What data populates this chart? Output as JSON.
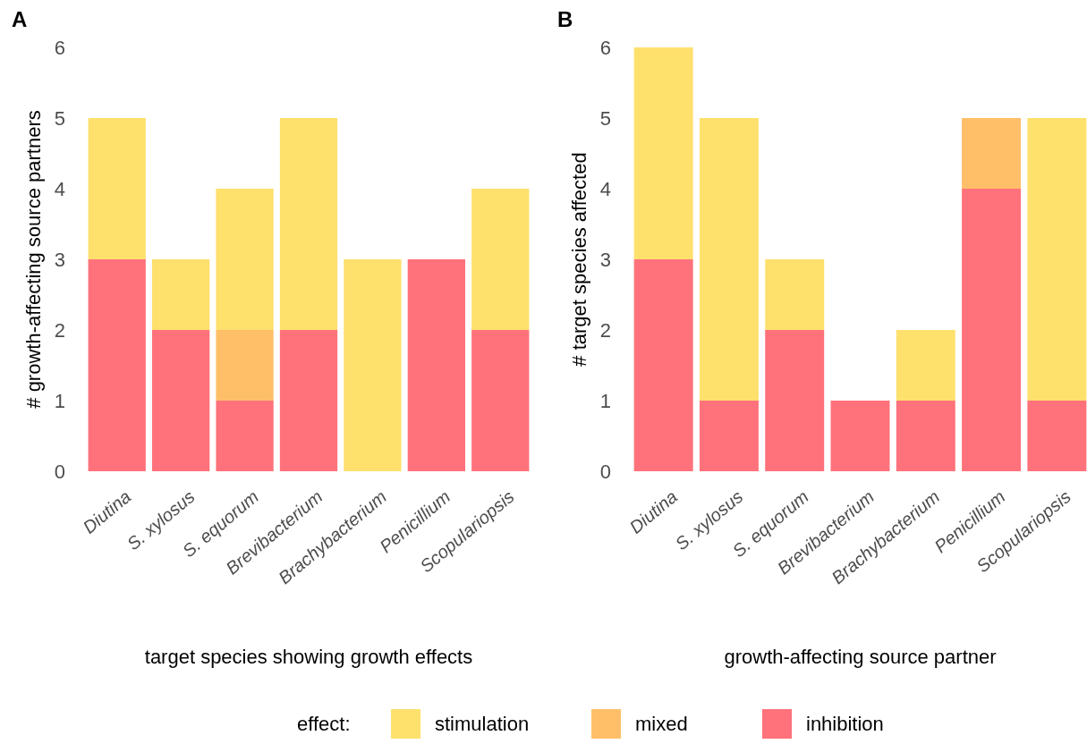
{
  "chart_data": [
    {
      "type": "bar",
      "title": "A",
      "xlabel": "target species showing growth effects",
      "ylabel": "# growth-affecting source partners",
      "categories": [
        "Diutina",
        "S. xylosus",
        "S. equorum",
        "Brevibacterium",
        "Brachybacterium",
        "Penicillium",
        "Scopulariopsis"
      ],
      "stacked": true,
      "ylim": [
        0,
        6
      ],
      "yticks": [
        0,
        1,
        2,
        3,
        4,
        5,
        6
      ],
      "grid": false,
      "legend": "bottom",
      "legend_title": "effect:",
      "series": [
        {
          "name": "inhibition",
          "color": "#ff727b",
          "values": [
            3,
            2,
            1,
            2,
            0,
            3,
            2
          ]
        },
        {
          "name": "mixed",
          "color": "#ffbf69",
          "values": [
            0,
            0,
            1,
            0,
            0,
            0,
            0
          ]
        },
        {
          "name": "stimulation",
          "color": "#fee06d",
          "values": [
            2,
            1,
            2,
            3,
            3,
            0,
            2
          ]
        }
      ]
    },
    {
      "type": "bar",
      "title": "B",
      "xlabel": "growth-affecting source partner",
      "ylabel": "# target species affected",
      "categories": [
        "Diutina",
        "S. xylosus",
        "S. equorum",
        "Brevibacterium",
        "Brachybacterium",
        "Penicillium",
        "Scopulariopsis"
      ],
      "stacked": true,
      "ylim": [
        0,
        6
      ],
      "yticks": [
        0,
        1,
        2,
        3,
        4,
        5,
        6
      ],
      "grid": false,
      "series": [
        {
          "color": "#ff727b",
          "values": [
            3,
            1,
            2,
            1,
            1,
            4,
            1
          ]
        },
        {
          "color": "#ffbf69",
          "values": [
            0,
            0,
            0,
            0,
            0,
            1,
            0
          ]
        },
        {
          "color": "#fee06d",
          "values": [
            3,
            4,
            1,
            0,
            1,
            0,
            4
          ]
        }
      ]
    }
  ]
}
